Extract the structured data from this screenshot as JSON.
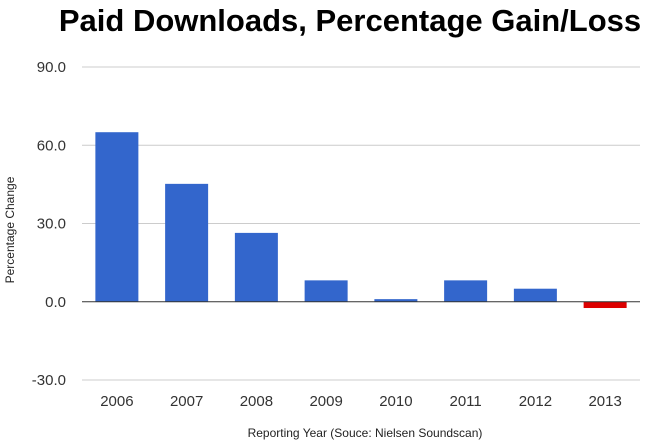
{
  "chart_data": {
    "type": "bar",
    "title": "Paid Downloads, Percentage Gain/Loss",
    "xlabel": "Reporting Year (Souce: Nielsen Soundscan)",
    "ylabel": "Percentage Change",
    "categories": [
      "2006",
      "2007",
      "2008",
      "2009",
      "2010",
      "2011",
      "2012",
      "2013"
    ],
    "values": [
      65.0,
      45.2,
      26.4,
      8.2,
      1.0,
      8.2,
      5.0,
      -2.4
    ],
    "ylim": [
      -30,
      90
    ],
    "yticks": [
      90,
      60,
      30,
      0,
      -30
    ],
    "ytick_labels": [
      "90.0",
      "60.0",
      "30.0",
      "0.0",
      "-30.0"
    ],
    "grid": true,
    "legend": "none",
    "colors": {
      "positive": "#3366cc",
      "negative": "#dc0000"
    }
  }
}
